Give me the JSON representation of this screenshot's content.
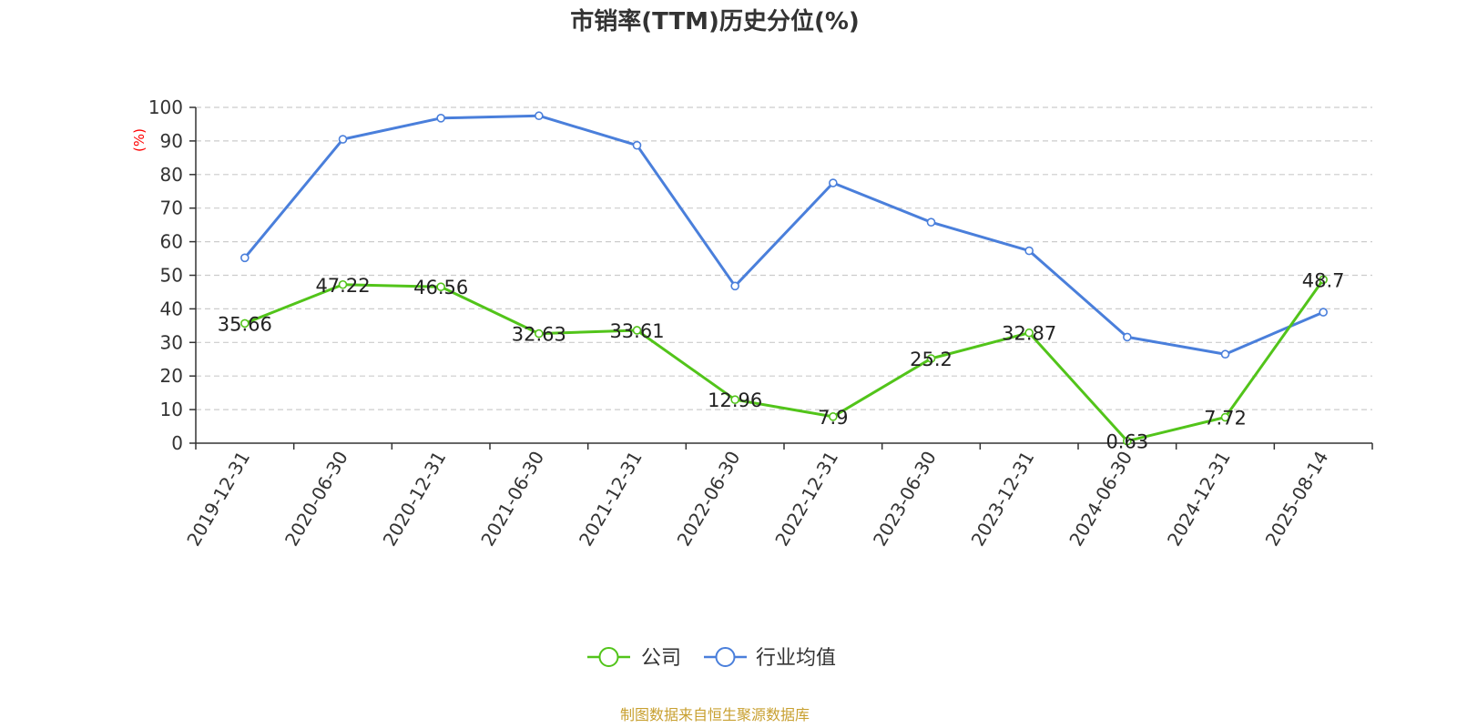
{
  "chart_data": {
    "type": "line",
    "title": "市销率(TTM)历史分位(%)",
    "ylabel": "(%)",
    "xlabel": "",
    "ylim": [
      0,
      100
    ],
    "yticks": [
      0,
      10,
      20,
      30,
      40,
      50,
      60,
      70,
      80,
      90,
      100
    ],
    "categories": [
      "2019-12-31",
      "2020-06-30",
      "2020-12-31",
      "2021-06-30",
      "2021-12-31",
      "2022-06-30",
      "2022-12-31",
      "2023-06-30",
      "2023-12-31",
      "2024-06-30",
      "2024-12-31",
      "2025-08-14"
    ],
    "grid": true,
    "legend_position": "bottom-center",
    "series": [
      {
        "name": "公司",
        "color": "#52c41a",
        "values": [
          35.66,
          47.22,
          46.56,
          32.63,
          33.61,
          12.96,
          7.9,
          25.2,
          32.87,
          0.63,
          7.72,
          48.7
        ],
        "show_labels": true
      },
      {
        "name": "行业均值",
        "color": "#4a7fdb",
        "values": [
          55.2,
          90.5,
          96.8,
          97.5,
          88.7,
          46.8,
          77.5,
          65.8,
          57.3,
          31.6,
          26.5,
          39.0
        ],
        "show_labels": false
      }
    ],
    "source": "制图数据来自恒生聚源数据库"
  }
}
